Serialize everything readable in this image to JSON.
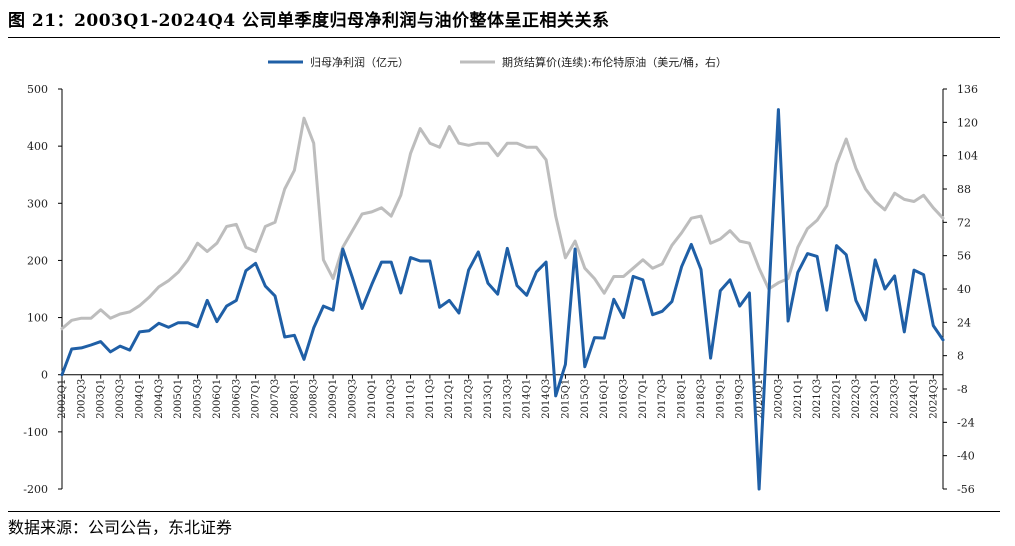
{
  "title": "图 21：2003Q1-2024Q4 公司单季度归母净利润与油价整体呈正相关关系",
  "source": "数据来源：公司公告，东北证券",
  "chart_data": {
    "type": "line",
    "x": [
      "2002Q1",
      "2002Q2",
      "2002Q3",
      "2002Q4",
      "2003Q1",
      "2003Q2",
      "2003Q3",
      "2003Q4",
      "2004Q1",
      "2004Q2",
      "2004Q3",
      "2004Q4",
      "2005Q1",
      "2005Q2",
      "2005Q3",
      "2005Q4",
      "2006Q1",
      "2006Q2",
      "2006Q3",
      "2006Q4",
      "2007Q1",
      "2007Q2",
      "2007Q3",
      "2007Q4",
      "2008Q1",
      "2008Q2",
      "2008Q3",
      "2008Q4",
      "2009Q1",
      "2009Q2",
      "2009Q3",
      "2009Q4",
      "2010Q1",
      "2010Q2",
      "2010Q3",
      "2010Q4",
      "2011Q1",
      "2011Q2",
      "2011Q3",
      "2011Q4",
      "2012Q1",
      "2012Q2",
      "2012Q3",
      "2012Q4",
      "2013Q1",
      "2013Q2",
      "2013Q3",
      "2013Q4",
      "2014Q1",
      "2014Q2",
      "2014Q3",
      "2014Q4",
      "2015Q1",
      "2015Q2",
      "2015Q3",
      "2015Q4",
      "2016Q1",
      "2016Q2",
      "2016Q3",
      "2016Q4",
      "2017Q1",
      "2017Q2",
      "2017Q3",
      "2017Q4",
      "2018Q1",
      "2018Q2",
      "2018Q3",
      "2018Q4",
      "2019Q1",
      "2019Q2",
      "2019Q3",
      "2019Q4",
      "2020Q1",
      "2020Q2",
      "2020Q3",
      "2020Q4",
      "2021Q1",
      "2021Q2",
      "2021Q3",
      "2021Q4",
      "2022Q1",
      "2022Q2",
      "2022Q3",
      "2022Q4",
      "2023Q1",
      "2023Q2",
      "2023Q3",
      "2023Q4",
      "2024Q1",
      "2024Q2",
      "2024Q3",
      "2024Q4"
    ],
    "x_tick_labels": [
      "2002Q1",
      "2002Q3",
      "2003Q1",
      "2003Q3",
      "2004Q1",
      "2004Q3",
      "2005Q1",
      "2005Q3",
      "2006Q1",
      "2006Q3",
      "2007Q1",
      "2007Q3",
      "2008Q1",
      "2008Q3",
      "2009Q1",
      "2009Q3",
      "2010Q1",
      "2010Q3",
      "2011Q1",
      "2011Q3",
      "2012Q1",
      "2012Q3",
      "2013Q1",
      "2013Q3",
      "2014Q1",
      "2014Q3",
      "2015Q1",
      "2015Q3",
      "2016Q1",
      "2016Q3",
      "2017Q1",
      "2017Q3",
      "2018Q1",
      "2018Q3",
      "2019Q1",
      "2019Q3",
      "2020Q1",
      "2020Q3",
      "2021Q1",
      "2021Q3",
      "2022Q1",
      "2022Q3",
      "2023Q1",
      "2023Q3",
      "2024Q1",
      "2024Q3"
    ],
    "series": [
      {
        "name": "归母净利润（亿元）",
        "axis": "left",
        "color": "#1F5FA6",
        "values": [
          0,
          45,
          47,
          52,
          58,
          40,
          50,
          43,
          75,
          77,
          90,
          83,
          91,
          91,
          84,
          130,
          93,
          120,
          130,
          182,
          195,
          155,
          138,
          66,
          69,
          27,
          82,
          120,
          113,
          220,
          170,
          116,
          158,
          197,
          197,
          143,
          205,
          199,
          199,
          118,
          130,
          108,
          183,
          215,
          160,
          141,
          221,
          156,
          139,
          180,
          197,
          -37,
          18,
          220,
          14,
          65,
          64,
          132,
          100,
          172,
          166,
          105,
          111,
          128,
          189,
          228,
          184,
          29,
          147,
          166,
          120,
          143,
          -200,
          133,
          464,
          94,
          179,
          212,
          207,
          113,
          226,
          210,
          130,
          96,
          201,
          150,
          173,
          75,
          183,
          175,
          86,
          61
        ]
      },
      {
        "name": "期货结算价(连续):布伦特原油（美元/桶，右）",
        "axis": "right",
        "color": "#BDBDBD",
        "values": [
          21,
          25,
          26,
          26,
          30,
          26,
          28,
          29,
          32,
          36,
          41,
          44,
          48,
          54,
          62,
          58,
          62,
          70,
          71,
          60,
          58,
          70,
          72,
          88,
          97,
          122,
          110,
          54,
          45,
          60,
          68,
          76,
          77,
          79,
          75,
          85,
          105,
          117,
          110,
          108,
          118,
          110,
          109,
          110,
          110,
          104,
          110,
          110,
          108,
          108,
          102,
          75,
          55,
          63,
          50,
          45,
          38,
          46,
          46,
          50,
          54,
          50,
          52,
          61,
          67,
          74,
          75,
          62,
          64,
          68,
          63,
          62,
          50,
          40,
          43,
          45,
          60,
          69,
          73,
          80,
          100,
          112,
          98,
          88,
          82,
          78,
          86,
          83,
          82,
          85,
          79,
          74
        ]
      }
    ],
    "y_left": {
      "min": -200,
      "max": 500,
      "ticks": [
        -200,
        -100,
        0,
        100,
        200,
        300,
        400,
        500
      ]
    },
    "y_right": {
      "min": -56,
      "max": 136,
      "ticks": [
        -56,
        -40,
        -24,
        -8,
        8,
        24,
        40,
        56,
        72,
        88,
        104,
        120,
        136
      ]
    },
    "legend_position": "top-center",
    "grid": false
  }
}
